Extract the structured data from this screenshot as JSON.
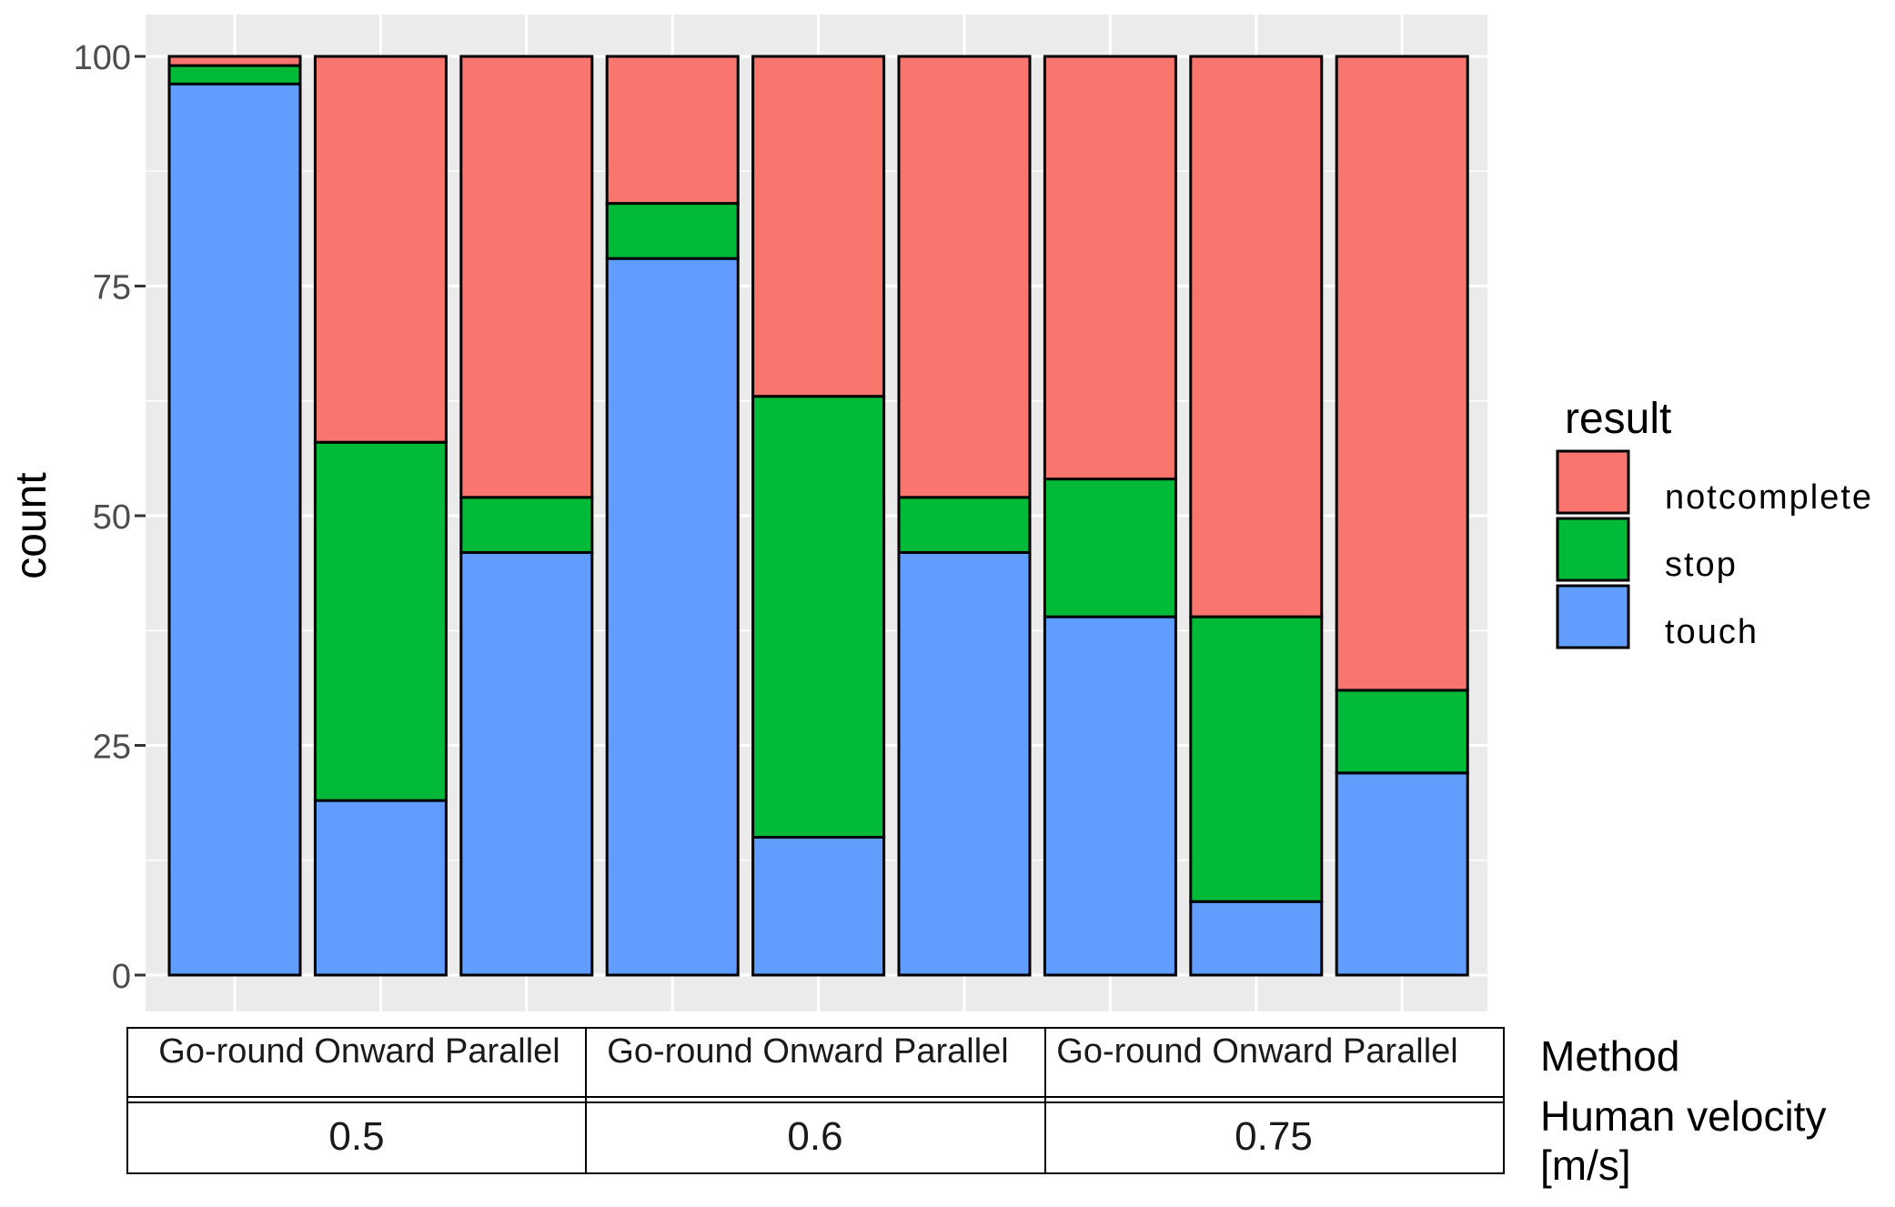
{
  "chart_data": {
    "type": "bar",
    "stacked": true,
    "ylabel": "count",
    "ylim": [
      0,
      100
    ],
    "yticks": [
      "0",
      "25",
      "50",
      "75",
      "100"
    ],
    "grid": true,
    "legend": {
      "title": "result",
      "position": "right",
      "entries": [
        "notcomplete",
        "stop",
        "touch"
      ]
    },
    "categories": [
      "Go-round",
      "Onward",
      "Parallel",
      "Go-round",
      "Onward",
      "Parallel",
      "Go-round",
      "Onward",
      "Parallel"
    ],
    "series": [
      {
        "name": "touch",
        "color": "#619CFF",
        "values": [
          97,
          19,
          46,
          78,
          15,
          46,
          39,
          8,
          22
        ]
      },
      {
        "name": "stop",
        "color": "#00BA38",
        "values": [
          2,
          39,
          6,
          6,
          48,
          6,
          15,
          31,
          9
        ]
      },
      {
        "name": "notcomplete",
        "color": "#F8766D",
        "values": [
          1,
          42,
          48,
          16,
          37,
          48,
          46,
          61,
          69
        ]
      }
    ],
    "groups": [
      {
        "methods": "Go-round Onward Parallel",
        "velocity": "0.5"
      },
      {
        "methods": "Go-round Onward Parallel",
        "velocity": "0.6"
      },
      {
        "methods": "Go-round Onward Parallel",
        "velocity": "0.75"
      }
    ],
    "row_labels": {
      "method": "Method",
      "velocity_line1": "Human velocity",
      "velocity_line2": "[m/s]"
    }
  }
}
